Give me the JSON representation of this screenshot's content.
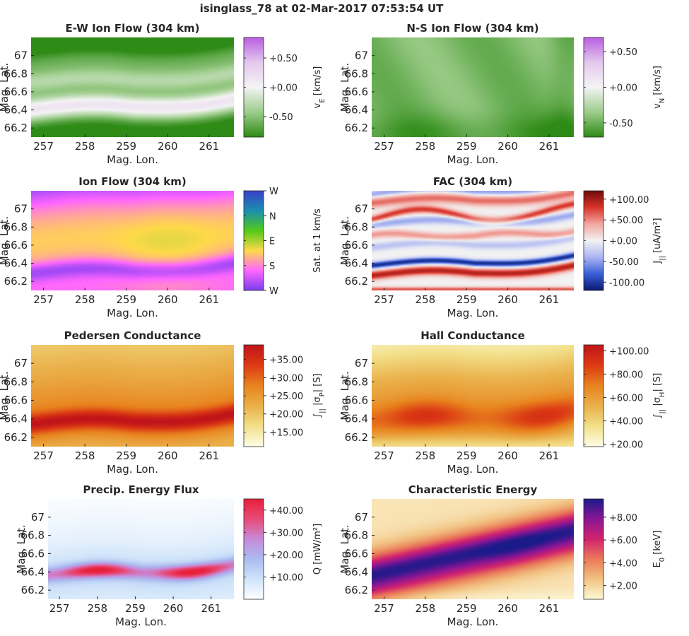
{
  "figure": {
    "title": "isinglass_78 at 02-Mar-2017 07:53:54 UT"
  },
  "chart_data": [
    {
      "type": "heatmap",
      "title": "E-W Ion Flow (304 km)",
      "xlabel": "Mag. Lon.",
      "ylabel": "Mag. Lat.",
      "xlim": [
        256.7,
        261.6
      ],
      "ylim": [
        66.1,
        67.2
      ],
      "xticks": [
        257,
        258,
        259,
        260,
        261
      ],
      "yticks": [
        66.2,
        66.4,
        66.6,
        66.8,
        67
      ],
      "colorbar": {
        "label_main": "v",
        "label_sub": "E",
        "label_unit": " [km/s]",
        "ticks": [
          "+0.50",
          "+0.00",
          "-0.50"
        ],
        "tick_values": [
          0.5,
          0.0,
          -0.5
        ],
        "range": [
          -0.85,
          0.85
        ],
        "colors": [
          "#2e8b16",
          "#9ccc8a",
          "#f4f4f4",
          "#e4c8ee",
          "#b95ee0"
        ]
      },
      "field": "ew"
    },
    {
      "type": "heatmap",
      "title": "N-S Ion Flow (304 km)",
      "xlabel": "Mag. Lon.",
      "ylabel": "Mag. Lat.",
      "xlim": [
        256.7,
        261.6
      ],
      "ylim": [
        66.1,
        67.2
      ],
      "xticks": [
        257,
        258,
        259,
        260,
        261
      ],
      "yticks": [
        66.2,
        66.4,
        66.6,
        66.8,
        67
      ],
      "colorbar": {
        "label_main": "v",
        "label_sub": "N",
        "label_unit": " [km/s]",
        "ticks": [
          "+0.50",
          "+0.00",
          "-0.50"
        ],
        "tick_values": [
          0.5,
          0.0,
          -0.5
        ],
        "range": [
          -0.7,
          0.7
        ],
        "colors": [
          "#2e8b16",
          "#9ccc8a",
          "#f4f4f4",
          "#e4c8ee",
          "#b95ee0"
        ]
      },
      "field": "ns"
    },
    {
      "type": "heatmap",
      "title": "Ion Flow (304 km)",
      "xlabel": "Mag. Lon.",
      "ylabel": "Mag. Lat.",
      "xlim": [
        256.7,
        261.6
      ],
      "ylim": [
        66.1,
        67.2
      ],
      "xticks": [
        257,
        258,
        259,
        260,
        261
      ],
      "yticks": [
        66.2,
        66.4,
        66.6,
        66.8,
        67
      ],
      "colorbar": {
        "label_main": "Sat. at 1 km/s",
        "label_sub": "",
        "label_unit": "",
        "ticks": [
          "W",
          "N",
          "E",
          "S",
          "W"
        ],
        "tick_values": [
          1.0,
          0.75,
          0.5,
          0.25,
          0.0
        ],
        "range": [
          0,
          1
        ],
        "colors": [
          "#7a3cf0",
          "#ff66ff",
          "#ffd94a",
          "#52c918",
          "#1a8fb0",
          "#3a40c8"
        ]
      },
      "field": "flow"
    },
    {
      "type": "heatmap",
      "title": "FAC (304 km)",
      "xlabel": "Mag. Lon.",
      "ylabel": "Mag. Lat.",
      "xlim": [
        256.7,
        261.6
      ],
      "ylim": [
        66.1,
        67.2
      ],
      "xticks": [
        257,
        258,
        259,
        260,
        261
      ],
      "yticks": [
        66.2,
        66.4,
        66.6,
        66.8,
        67
      ],
      "colorbar": {
        "label_main": "J",
        "label_sub": "||",
        "label_unit": " [uA/m²]",
        "ticks": [
          "+100.00",
          "+50.00",
          "+0.00",
          "-50.00",
          "-100.00"
        ],
        "tick_values": [
          100,
          50,
          0,
          -50,
          -100
        ],
        "range": [
          -120,
          120
        ],
        "colors": [
          "#0a1a6e",
          "#3a5ed8",
          "#aab4f2",
          "#f2f2f2",
          "#f2a6a0",
          "#d8342a",
          "#6e0a0a"
        ]
      },
      "field": "fac"
    },
    {
      "type": "heatmap",
      "title": "Pedersen Conductance",
      "xlabel": "Mag. Lon.",
      "ylabel": "Mag. Lat.",
      "xlim": [
        256.7,
        261.6
      ],
      "ylim": [
        66.1,
        67.2
      ],
      "xticks": [
        257,
        258,
        259,
        260,
        261
      ],
      "yticks": [
        66.2,
        66.4,
        66.6,
        66.8,
        67
      ],
      "colorbar": {
        "label_main": "∫",
        "label_sub": "||",
        "label_unit": " |σ",
        "label_sub2": "P",
        "label_unit2": "| [S]",
        "ticks": [
          "+35.00",
          "+30.00",
          "+25.00",
          "+20.00",
          "+15.00"
        ],
        "tick_values": [
          35,
          30,
          25,
          20,
          15
        ],
        "range": [
          11,
          39
        ],
        "colors": [
          "#fdfde6",
          "#f2e08a",
          "#eab04a",
          "#e8831e",
          "#dc3a14",
          "#c0141a"
        ]
      },
      "field": "ped"
    },
    {
      "type": "heatmap",
      "title": "Hall Conductance",
      "xlabel": "Mag. Lon.",
      "ylabel": "Mag. Lat.",
      "xlim": [
        256.7,
        261.6
      ],
      "ylim": [
        66.1,
        67.2
      ],
      "xticks": [
        257,
        258,
        259,
        260,
        261
      ],
      "yticks": [
        66.2,
        66.4,
        66.6,
        66.8,
        67
      ],
      "colorbar": {
        "label_main": "∫",
        "label_sub": "||",
        "label_unit": " |σ",
        "label_sub2": "H",
        "label_unit2": "| [S]",
        "ticks": [
          "+100.00",
          "+80.00",
          "+60.00",
          "+40.00",
          "+20.00"
        ],
        "tick_values": [
          100,
          80,
          60,
          40,
          20
        ],
        "range": [
          18,
          105
        ],
        "colors": [
          "#fdfde6",
          "#f2e08a",
          "#eab04a",
          "#e8831e",
          "#dc3a14",
          "#c0141a"
        ]
      },
      "field": "hall"
    },
    {
      "type": "heatmap",
      "title": "Precip. Energy Flux",
      "xlabel": "Mag. Lon.",
      "ylabel": "Mag. Lat.",
      "xlim": [
        256.7,
        261.6
      ],
      "ylim": [
        66.1,
        67.2
      ],
      "xticks": [
        257,
        258,
        259,
        260,
        261
      ],
      "yticks": [
        66.2,
        66.4,
        66.6,
        66.8,
        67
      ],
      "colorbar": {
        "label_main": "Q [mW/m²]",
        "label_sub": "",
        "label_unit": "",
        "ticks": [
          "+40.00",
          "+30.00",
          "+20.00",
          "+10.00"
        ],
        "tick_values": [
          40,
          30,
          20,
          10
        ],
        "range": [
          0,
          45
        ],
        "colors": [
          "#ffffff",
          "#cfe4fa",
          "#aabcf0",
          "#c88ad8",
          "#e84a78",
          "#e8203a"
        ]
      },
      "field": "flux"
    },
    {
      "type": "heatmap",
      "title": "Characteristic Energy",
      "xlabel": "Mag. Lon.",
      "ylabel": "Mag. Lat.",
      "xlim": [
        256.7,
        261.6
      ],
      "ylim": [
        66.1,
        67.2
      ],
      "xticks": [
        257,
        258,
        259,
        260,
        261
      ],
      "yticks": [
        66.2,
        66.4,
        66.6,
        66.8,
        67
      ],
      "colorbar": {
        "label_main": "E",
        "label_sub": "0",
        "label_unit": " [keV]",
        "ticks": [
          "+8.00",
          "+6.00",
          "+4.00",
          "+2.00"
        ],
        "tick_values": [
          8,
          6,
          4,
          2
        ],
        "range": [
          0.8,
          9.6
        ],
        "colors": [
          "#fdfad8",
          "#f2c282",
          "#ea7a58",
          "#d2246e",
          "#8a1694",
          "#1a1a8a"
        ]
      },
      "field": "echar"
    }
  ]
}
